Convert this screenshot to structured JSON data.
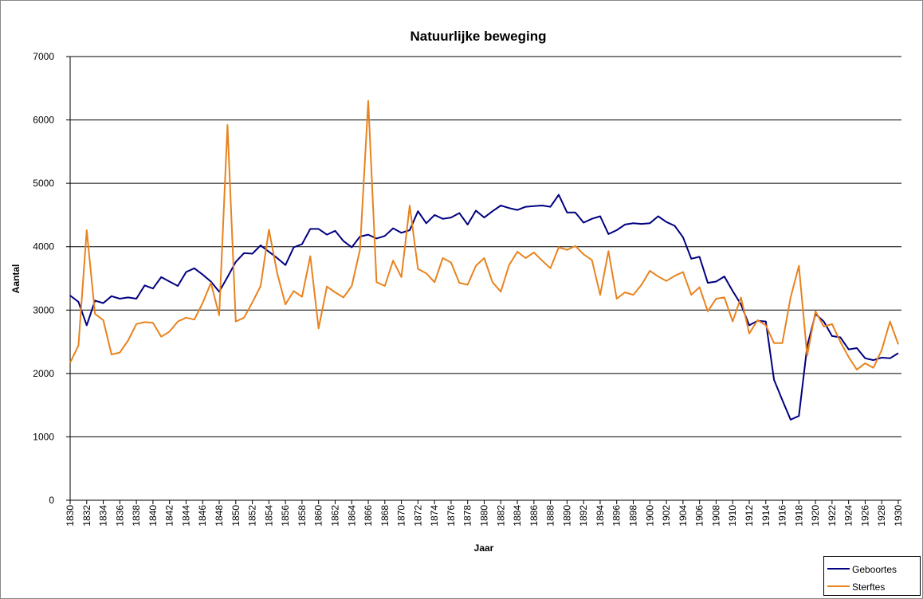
{
  "chart_data": {
    "type": "line",
    "title": "Natuurlijke beweging",
    "x_label": "Jaar",
    "y_label": "Aantal",
    "x": [
      1830,
      1831,
      1832,
      1833,
      1834,
      1835,
      1836,
      1837,
      1838,
      1839,
      1840,
      1841,
      1842,
      1843,
      1844,
      1845,
      1846,
      1847,
      1848,
      1849,
      1850,
      1851,
      1852,
      1853,
      1854,
      1855,
      1856,
      1857,
      1858,
      1859,
      1860,
      1861,
      1862,
      1863,
      1864,
      1865,
      1866,
      1867,
      1868,
      1869,
      1870,
      1871,
      1872,
      1873,
      1874,
      1875,
      1876,
      1877,
      1878,
      1879,
      1880,
      1881,
      1882,
      1883,
      1884,
      1885,
      1886,
      1887,
      1888,
      1889,
      1890,
      1891,
      1892,
      1893,
      1894,
      1895,
      1896,
      1897,
      1898,
      1899,
      1900,
      1901,
      1902,
      1903,
      1904,
      1905,
      1906,
      1907,
      1908,
      1909,
      1910,
      1911,
      1912,
      1913,
      1914,
      1915,
      1916,
      1917,
      1918,
      1919,
      1920,
      1921,
      1922,
      1923,
      1924,
      1925,
      1926,
      1927,
      1928,
      1929,
      1930
    ],
    "series": [
      {
        "name": "Geboortes",
        "color": "#000080",
        "values": [
          3230,
          3130,
          2760,
          3150,
          3110,
          3220,
          3180,
          3200,
          3180,
          3390,
          3340,
          3520,
          3450,
          3380,
          3600,
          3660,
          3560,
          3450,
          3290,
          3520,
          3760,
          3900,
          3890,
          4020,
          3920,
          3820,
          3710,
          3990,
          4040,
          4280,
          4280,
          4190,
          4250,
          4090,
          3990,
          4160,
          4190,
          4130,
          4170,
          4290,
          4220,
          4260,
          4560,
          4370,
          4500,
          4440,
          4460,
          4530,
          4350,
          4570,
          4460,
          4560,
          4650,
          4610,
          4580,
          4630,
          4640,
          4650,
          4630,
          4820,
          4540,
          4540,
          4380,
          4440,
          4480,
          4200,
          4260,
          4350,
          4370,
          4360,
          4370,
          4480,
          4390,
          4330,
          4150,
          3810,
          3840,
          3430,
          3450,
          3530,
          3300,
          3090,
          2760,
          2830,
          2820,
          1900,
          1580,
          1270,
          1330,
          2430,
          2940,
          2820,
          2590,
          2570,
          2380,
          2400,
          2240,
          2210,
          2250,
          2240,
          2320
        ]
      },
      {
        "name": "Sterftes",
        "color": "#e8831e",
        "values": [
          2170,
          2440,
          4260,
          2940,
          2840,
          2300,
          2330,
          2520,
          2780,
          2810,
          2800,
          2580,
          2660,
          2820,
          2880,
          2850,
          3110,
          3430,
          2920,
          5920,
          2820,
          2880,
          3120,
          3380,
          4270,
          3580,
          3090,
          3300,
          3210,
          3850,
          2710,
          3370,
          3280,
          3200,
          3380,
          3950,
          6300,
          3440,
          3380,
          3780,
          3520,
          4650,
          3650,
          3580,
          3440,
          3820,
          3750,
          3430,
          3400,
          3700,
          3820,
          3440,
          3290,
          3710,
          3920,
          3820,
          3910,
          3780,
          3660,
          3990,
          3950,
          4010,
          3880,
          3790,
          3240,
          3930,
          3180,
          3280,
          3240,
          3400,
          3620,
          3530,
          3460,
          3540,
          3600,
          3240,
          3360,
          2980,
          3180,
          3200,
          2820,
          3200,
          2630,
          2840,
          2760,
          2480,
          2480,
          3200,
          3700,
          2280,
          2980,
          2740,
          2780,
          2500,
          2260,
          2060,
          2160,
          2090,
          2370,
          2820,
          2460
        ]
      }
    ],
    "xlim": [
      1830,
      1930
    ],
    "xticks": [
      1830,
      1832,
      1834,
      1836,
      1838,
      1840,
      1842,
      1844,
      1846,
      1848,
      1850,
      1852,
      1854,
      1856,
      1858,
      1860,
      1862,
      1864,
      1866,
      1868,
      1870,
      1872,
      1874,
      1876,
      1878,
      1880,
      1882,
      1884,
      1886,
      1888,
      1890,
      1892,
      1894,
      1896,
      1898,
      1900,
      1902,
      1904,
      1906,
      1908,
      1910,
      1912,
      1914,
      1916,
      1918,
      1920,
      1922,
      1924,
      1926,
      1928,
      1930
    ],
    "ylim": [
      0,
      7000
    ],
    "yticks": [
      0,
      1000,
      2000,
      3000,
      4000,
      5000,
      6000,
      7000
    ],
    "grid": true,
    "legend": "bottom-right"
  }
}
